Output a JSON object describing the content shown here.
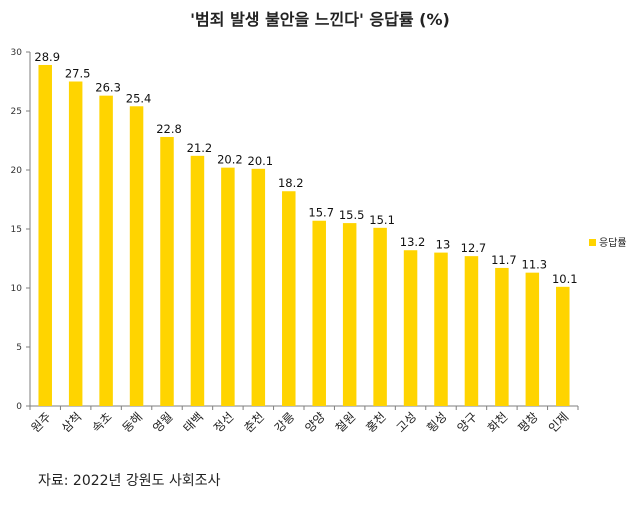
{
  "chart_data": {
    "type": "bar",
    "title": "'범죄 발생 불안을 느낀다' 응답률  (%)",
    "categories": [
      "원주",
      "삼척",
      "속초",
      "동해",
      "영월",
      "태백",
      "정선",
      "춘천",
      "강릉",
      "양양",
      "철원",
      "홍천",
      "고성",
      "횡성",
      "양구",
      "화천",
      "평창",
      "인제"
    ],
    "series": [
      {
        "name": "응답률",
        "values": [
          28.9,
          27.5,
          26.3,
          25.4,
          22.8,
          21.2,
          20.2,
          20.1,
          18.2,
          15.7,
          15.5,
          15.1,
          13.2,
          13,
          12.7,
          11.7,
          11.3,
          10.1
        ]
      }
    ],
    "data_labels": [
      "28.9",
      "27.5",
      "26.3",
      "25.4",
      "22.8",
      "21.2",
      "20.2",
      "20.1",
      "18.2",
      "15.7",
      "15.5",
      "15.1",
      "13.2",
      "13",
      "12.7",
      "11.7",
      "11.3",
      "10.1"
    ],
    "ylim": [
      0,
      30
    ],
    "yticks": [
      "0",
      "5",
      "10",
      "15",
      "20",
      "25",
      "30"
    ],
    "legend_position": "right",
    "bar_color": "#FFD400",
    "grid": false
  },
  "source_note": "자료: 2022년 강원도 사회조사"
}
